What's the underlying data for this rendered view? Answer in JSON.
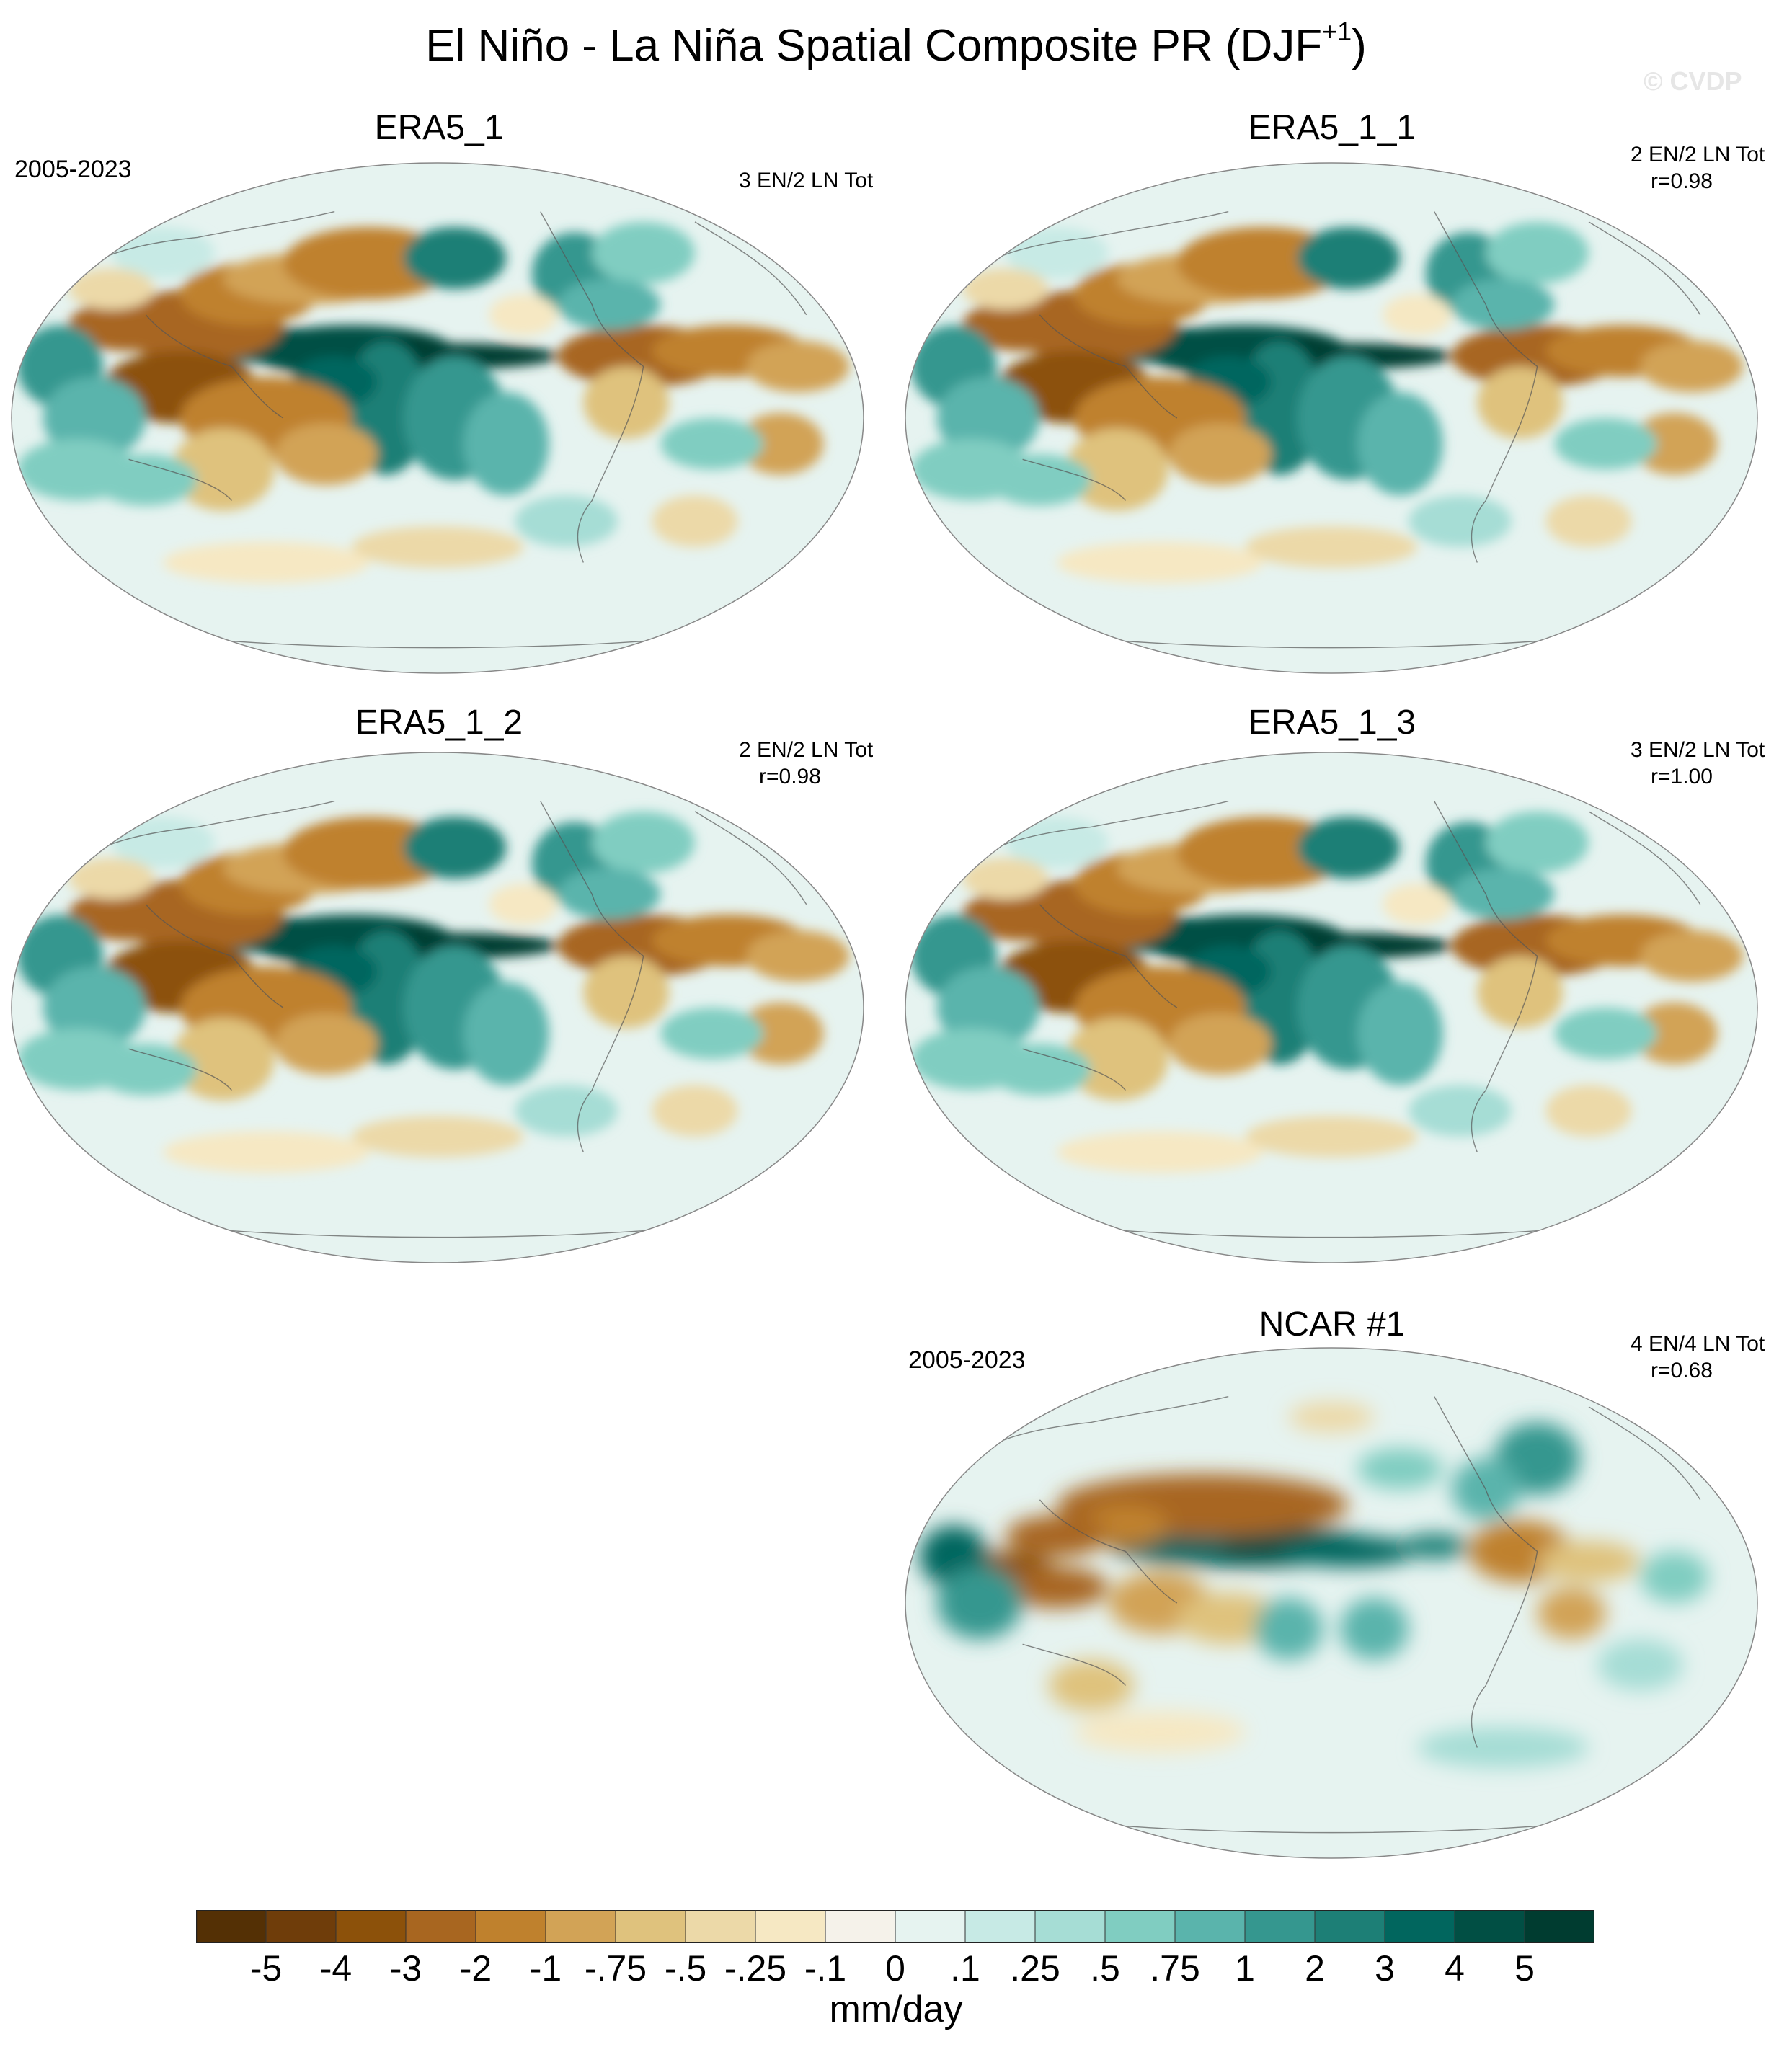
{
  "figure": {
    "title": "El Niño - La Niña Spatial Composite PR (DJF",
    "title_superscript": "+1",
    "title_end": ")",
    "watermark": "© CVDP"
  },
  "panels": [
    {
      "name": "ERA5_1",
      "period": "2005-2023",
      "events": "3 EN/2 LN Tot",
      "correlation": ""
    },
    {
      "name": "ERA5_1_1",
      "period": "",
      "events": "2 EN/2 LN Tot",
      "correlation": "r=0.98"
    },
    {
      "name": "ERA5_1_2",
      "period": "",
      "events": "2 EN/2 LN Tot",
      "correlation": "r=0.98"
    },
    {
      "name": "ERA5_1_3",
      "period": "",
      "events": "3 EN/2 LN Tot",
      "correlation": "r=1.00"
    },
    {
      "name": "NCAR #1",
      "period": "2005-2023",
      "events": "4 EN/4 LN Tot",
      "correlation": "r=0.68"
    }
  ],
  "chart_data": {
    "type": "heatmap",
    "projection": "Robinson-style global map, Pacific-centered",
    "variable": "PR",
    "season": "DJF+1",
    "units": "mm/day",
    "colorbar": {
      "levels": [
        "-5",
        "-4",
        "-3",
        "-2",
        "-1",
        "-.75",
        "-.5",
        "-.25",
        "-.1",
        "0",
        ".1",
        ".25",
        ".5",
        ".75",
        "1",
        "2",
        "3",
        "4",
        "5"
      ],
      "colors": [
        "#543005",
        "#6f3d0a",
        "#8c510a",
        "#a86620",
        "#bf812d",
        "#d2a356",
        "#dfc27d",
        "#ecd9a8",
        "#f6e8c3",
        "#f5f2ea",
        "#e6f3f0",
        "#c7eae5",
        "#a6ddd5",
        "#80cdc1",
        "#5ab4ac",
        "#35978f",
        "#1d7f76",
        "#01665e",
        "#014f44",
        "#003c30"
      ],
      "orientation": "horizontal"
    },
    "features": [
      "strong positive anomaly (wet) along central/eastern equatorial Pacific",
      "negative anomalies (dry) over Maritime Continent, western Pacific subtropics, northern South America, equatorial Atlantic",
      "positive anomalies over western Indian Ocean and southeastern US / North Atlantic"
    ]
  }
}
